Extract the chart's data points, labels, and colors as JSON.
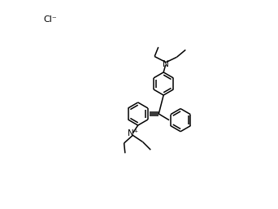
{
  "bg": "#ffffff",
  "lc": "#000000",
  "lw": 1.1,
  "fs_label": 7.5,
  "fs_cl": 8,
  "cl_text": "Cl⁻",
  "Np_text": "N⁺",
  "N_text": "N",
  "ring_r": 0.055,
  "figw": 3.42,
  "figh": 2.57,
  "dpi": 100
}
